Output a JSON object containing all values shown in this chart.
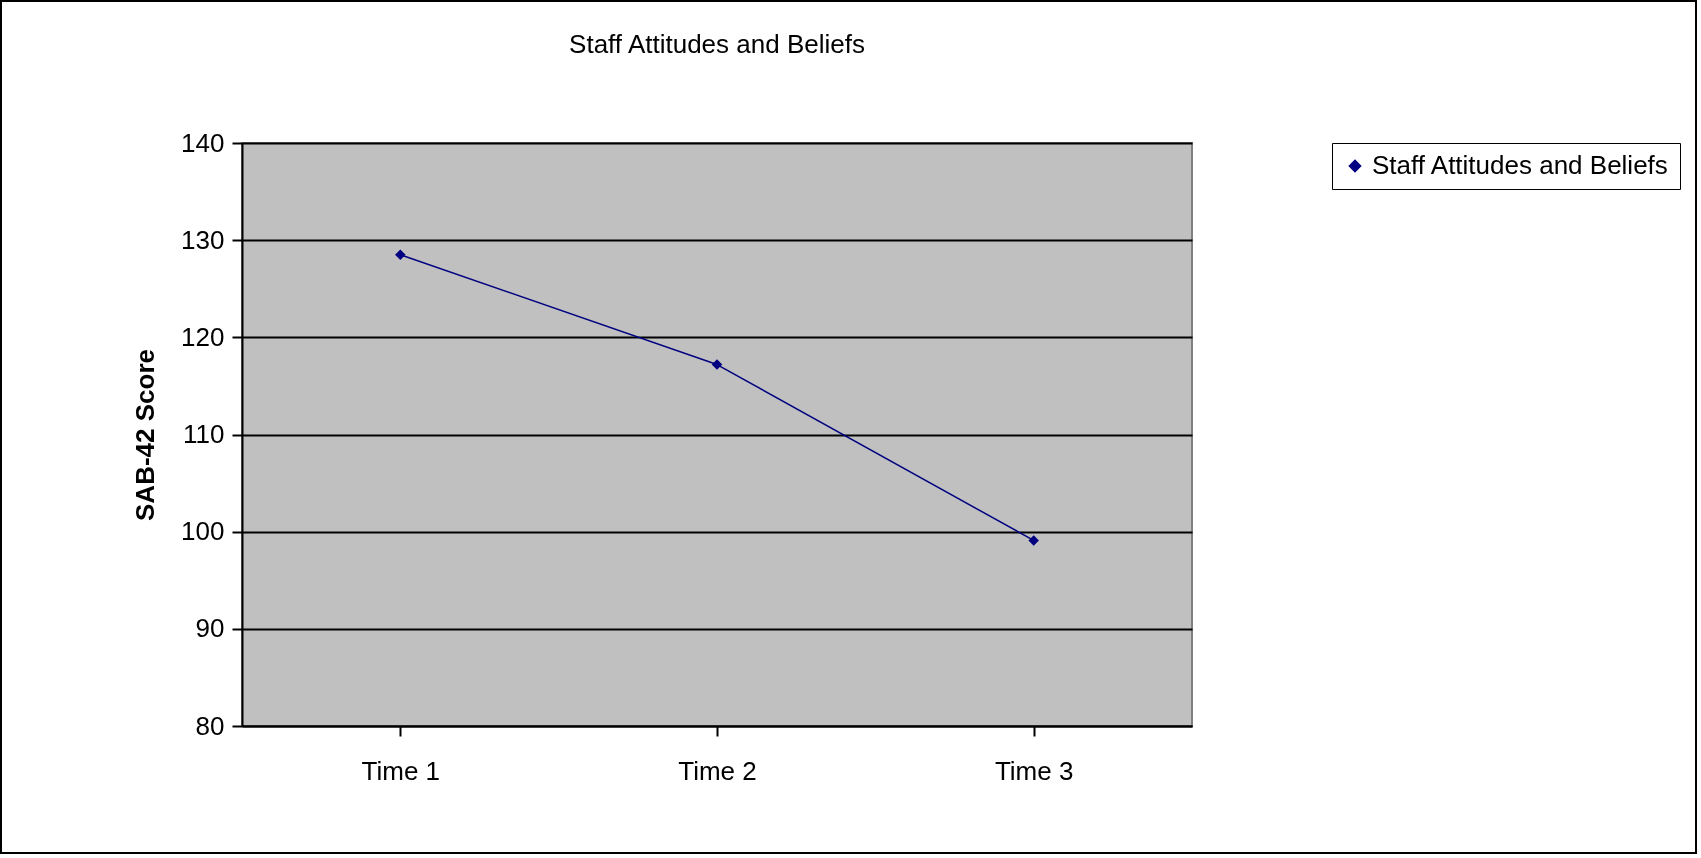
{
  "chart_data": {
    "type": "line",
    "title": "Staff Attitudes and Beliefs",
    "ylabel": "SAB-42 Score",
    "categories": [
      "Time 1",
      "Time 2",
      "Time 3"
    ],
    "series": [
      {
        "name": "Staff Attitudes and Beliefs",
        "color": "#000080",
        "values": [
          128.5,
          117.2,
          99.1
        ]
      }
    ],
    "ylim": [
      80,
      140
    ],
    "yticks": [
      80,
      90,
      100,
      110,
      120,
      130,
      140
    ],
    "grid": "y",
    "legend": "right",
    "marker": "diamond"
  }
}
